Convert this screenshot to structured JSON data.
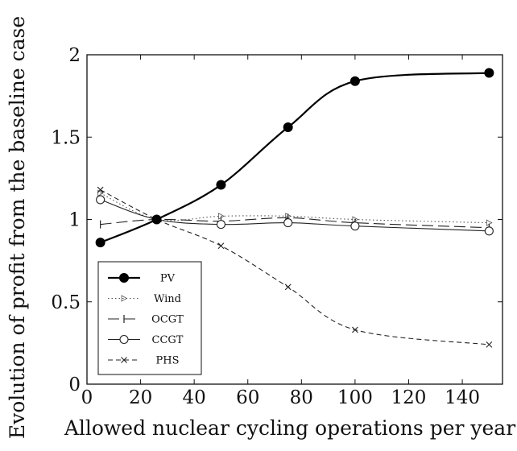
{
  "chart_data": {
    "type": "line",
    "title": "",
    "xlabel": "Allowed nuclear cycling operations per year",
    "ylabel": "Evolution of profit from the baseline case",
    "xlim": [
      0,
      155
    ],
    "ylim": [
      0,
      2
    ],
    "xticks": [
      0,
      20,
      40,
      60,
      80,
      100,
      120,
      140
    ],
    "yticks": [
      0,
      0.5,
      1,
      1.5,
      2
    ],
    "xtick_labels": [
      "0",
      "20",
      "40",
      "60",
      "80",
      "100",
      "120",
      "140"
    ],
    "ytick_labels": [
      "0",
      "0.5",
      "1",
      "1.5",
      "2"
    ],
    "grid": false,
    "legend_position": "bottom-left",
    "series": [
      {
        "name": "PV",
        "style": "solid-thick",
        "marker": "filled-circle",
        "color": "#000000",
        "x": [
          5,
          26,
          50,
          75,
          100,
          150
        ],
        "y": [
          0.86,
          1.0,
          1.21,
          1.56,
          1.84,
          1.89
        ]
      },
      {
        "name": "Wind",
        "style": "dotted",
        "marker": "triangle-right",
        "color": "#555555",
        "x": [
          5,
          26,
          50,
          75,
          100,
          150
        ],
        "y": [
          1.16,
          1.0,
          1.02,
          1.02,
          1.0,
          0.98
        ]
      },
      {
        "name": "OCGT",
        "style": "long-dash",
        "marker": "vertical-bar",
        "color": "#222222",
        "x": [
          5,
          26,
          50,
          75,
          100,
          150
        ],
        "y": [
          0.97,
          1.0,
          0.99,
          1.01,
          0.98,
          0.95
        ]
      },
      {
        "name": "CCGT",
        "style": "solid-thin",
        "marker": "open-circle",
        "color": "#222222",
        "x": [
          5,
          26,
          50,
          75,
          100,
          150
        ],
        "y": [
          1.12,
          1.0,
          0.97,
          0.98,
          0.96,
          0.93
        ]
      },
      {
        "name": "PHS",
        "style": "dashed",
        "marker": "cross",
        "color": "#222222",
        "x": [
          5,
          26,
          50,
          75,
          100,
          150
        ],
        "y": [
          1.18,
          1.0,
          0.84,
          0.59,
          0.33,
          0.24
        ]
      }
    ]
  }
}
